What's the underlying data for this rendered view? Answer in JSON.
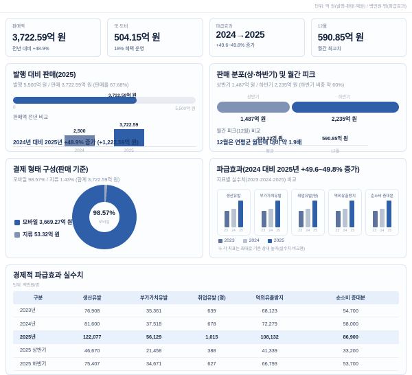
{
  "unit_note": "단위: 억 원(발행·판매·재원) / 백만원·명(파급효과)",
  "colors": {
    "accent_blue": "#2e5fa8",
    "slate_blue_2024": "#6e84ad",
    "muted_slate_segment": "#8093b4",
    "gray_bar_2024": "#b9c3d2",
    "slate_bar_2023": "#5d739e",
    "navy_text": "#14213c",
    "highlight_row": "#e9f2fc"
  },
  "kpis": [
    {
      "label": "판매액",
      "value": "3,722.59억 원",
      "sub": "전년 대비 +48.9%"
    },
    {
      "label": "국·도비",
      "value": "504.15억 원",
      "sub": "18% 혜택 운영"
    },
    {
      "label": "파급효과",
      "value": "2024→2025",
      "sub": "+49.6~49.8% 증가"
    },
    {
      "label": "12월",
      "value": "590.85억 원",
      "sub": "월간 최고치"
    }
  ],
  "issue": {
    "title": "발행 대비 판매(2025)",
    "subtitle": "발행 5,500억 원 / 판매 3,722.59억 원 (판매율 67.68%)",
    "bar_value_label": "3,722.59억 원",
    "scale_min": "0",
    "scale_max": "5,500억 원",
    "compare_label": "판매액 전년 비교",
    "bars": [
      {
        "year": "2024",
        "value_label": "2,500"
      },
      {
        "year": "2025",
        "value_label": "3,722.59"
      }
    ],
    "footer": "2024년 대비 2025년 +48.9% 증가 (+1,222.59억 원)"
  },
  "dist": {
    "title": "판매 분포(상·하반기) 및 월간 피크",
    "subtitle": "상반기 1,487억 원 / 하반기 2,235억 원 (하반기 비중 약 60%)",
    "segments": [
      {
        "label": "상반기",
        "value_label": "1,487억 원"
      },
      {
        "label": "하반기",
        "value_label": "2,235억 원"
      }
    ],
    "peak_label": "월간 피크(12월) 비교",
    "peaks": [
      {
        "value": "310.22억 원",
        "label": "평균"
      },
      {
        "value": "590.85억 원",
        "label": "12월"
      }
    ],
    "footer": "12월은 연평균 월판매 대비 약 1.9배"
  },
  "payment": {
    "title": "결제 형태 구성(판매 기준)",
    "subtitle": "모바일 98.57% / 지류 1.43% (합계 3,722.59억 원)",
    "donut_center_pct": "98.57%",
    "donut_center_label": "모바일",
    "legend": [
      {
        "label": "모바일 3,669.27억 원"
      },
      {
        "label": "지류 53.32억 원"
      }
    ]
  },
  "impact": {
    "title": "파급효과(2024 대비 2025년 +49.6~49.8% 증가)",
    "subtitle": "지표별 실수치(2023·2024·2025) 비교",
    "metrics": [
      {
        "label": "생산유발"
      },
      {
        "label": "부가가치유발"
      },
      {
        "label": "취업유발(명)"
      },
      {
        "label": "역외유출방지"
      },
      {
        "label": "순소비 증대분"
      }
    ],
    "year_short": [
      "23",
      "24",
      "25"
    ],
    "legend": [
      "2023",
      "2024",
      "2025"
    ],
    "note": "※ 각 지표는 최대값 기준 상대 높이(실수치 비교용)"
  },
  "table": {
    "title": "경제적 파급효과 실수치",
    "unit": "단위: 백만원/명",
    "columns": [
      "구분",
      "생산유발",
      "부가가치유발",
      "취업유발 (명)",
      "역외유출방지",
      "순소비 증대분"
    ],
    "rows": [
      {
        "cells": [
          "2023년",
          "76,908",
          "35,361",
          "639",
          "68,123",
          "54,700"
        ]
      },
      {
        "cells": [
          "2024년",
          "81,600",
          "37,518",
          "678",
          "72,279",
          "58,000"
        ]
      },
      {
        "cells": [
          "2025년",
          "122,077",
          "56,129",
          "1,015",
          "108,132",
          "86,900"
        ]
      },
      {
        "cells": [
          "2025 상반기",
          "46,670",
          "21,458",
          "388",
          "41,339",
          "33,200"
        ]
      },
      {
        "cells": [
          "2025 하반기",
          "75,407",
          "34,671",
          "627",
          "66,793",
          "53,700"
        ]
      }
    ]
  },
  "chart_data": [
    {
      "id": "issue-vs-sales-progress",
      "type": "bar",
      "title": "발행 대비 판매(2025)",
      "categories": [
        "판매액"
      ],
      "values": [
        3722.59
      ],
      "xlabel": "",
      "ylabel": "",
      "xlim": [
        0,
        5500
      ],
      "unit": "억 원",
      "fill_pct": 67.68
    },
    {
      "id": "sales-year-compare",
      "type": "bar",
      "title": "판매액 전년 비교",
      "categories": [
        "2024",
        "2025"
      ],
      "values": [
        2500,
        3722.59
      ],
      "unit": "억 원"
    },
    {
      "id": "half-year-split",
      "type": "bar",
      "title": "판매 분포(상·하반기)",
      "categories": [
        "상반기",
        "하반기"
      ],
      "values": [
        1487,
        2235
      ],
      "unit": "억 원"
    },
    {
      "id": "monthly-peak",
      "type": "bar",
      "title": "월간 피크(12월) 비교",
      "categories": [
        "평균",
        "12월"
      ],
      "values": [
        310.22,
        590.85
      ],
      "unit": "억 원"
    },
    {
      "id": "payment-mix",
      "type": "pie",
      "title": "결제 형태 구성(판매 기준)",
      "categories": [
        "모바일",
        "지류"
      ],
      "values": [
        98.57,
        1.43
      ],
      "unit": "%",
      "amounts": [
        3669.27,
        53.32
      ],
      "amount_unit": "억 원"
    },
    {
      "id": "impact-by-metric",
      "type": "bar",
      "title": "파급효과 지표별 실수치(2023·2024·2025) 비교",
      "categories": [
        "생산유발",
        "부가가치유발",
        "취업유발(명)",
        "역외유출방지",
        "순소비 증대분"
      ],
      "series": [
        {
          "name": "2023",
          "values": [
            76908,
            35361,
            639,
            68123,
            54700
          ]
        },
        {
          "name": "2024",
          "values": [
            81600,
            37518,
            678,
            72279,
            58000
          ]
        },
        {
          "name": "2025",
          "values": [
            122077,
            56129,
            1015,
            108132,
            86900
          ]
        }
      ],
      "unit": "백만원/명",
      "legend_position": "bottom"
    },
    {
      "id": "impact-table",
      "type": "table",
      "title": "경제적 파급효과 실수치",
      "columns": [
        "구분",
        "생산유발",
        "부가가치유발",
        "취업유발 (명)",
        "역외유출방지",
        "순소비 증대분"
      ],
      "rows": [
        [
          "2023년",
          76908,
          35361,
          639,
          68123,
          54700
        ],
        [
          "2024년",
          81600,
          37518,
          678,
          72279,
          58000
        ],
        [
          "2025년",
          122077,
          56129,
          1015,
          108132,
          86900
        ],
        [
          "2025 상반기",
          46670,
          21458,
          388,
          41339,
          33200
        ],
        [
          "2025 하반기",
          75407,
          34671,
          627,
          66793,
          53700
        ]
      ],
      "unit": "백만원/명"
    }
  ]
}
